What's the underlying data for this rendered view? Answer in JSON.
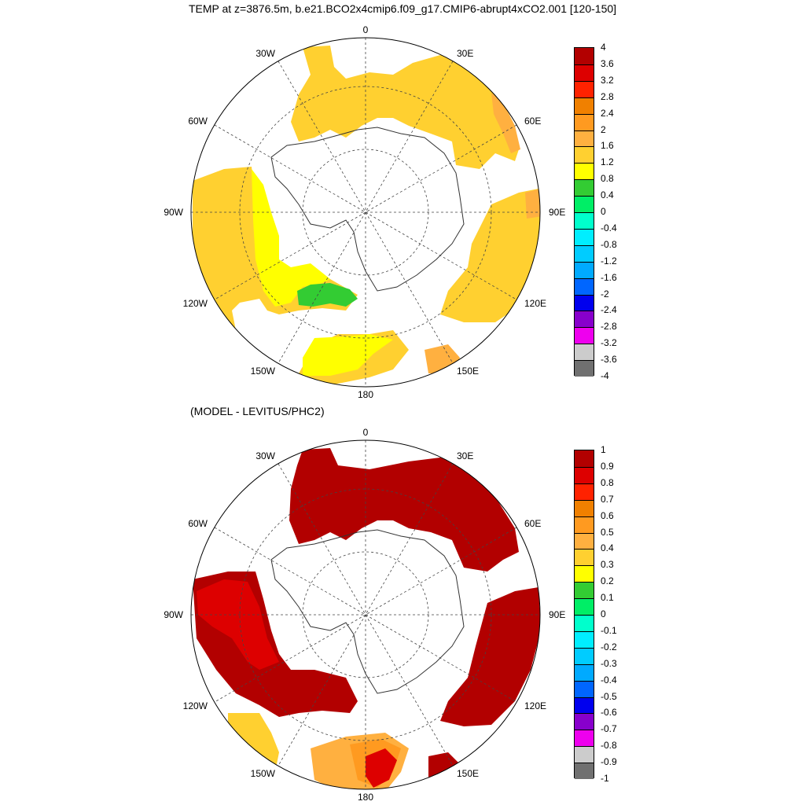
{
  "title": "TEMP at z=3876.5m, b.e21.BCO2x4cmip6.f09_g17.CMIP6-abrupt4xCO2.001 [120-150]",
  "subtitle": "(MODEL - LEVITUS/PHC2)",
  "longitude_labels": {
    "top": "0",
    "bottom": "180",
    "e30": "30E",
    "e60": "60E",
    "e90": "90E",
    "e120": "120E",
    "e150": "150E",
    "w30": "30W",
    "w60": "60W",
    "w90": "90W",
    "w120": "120W",
    "w150": "150W"
  },
  "colorbar_top": {
    "labels": [
      "4",
      "3.6",
      "3.2",
      "2.8",
      "2.4",
      "2",
      "1.6",
      "1.2",
      "0.8",
      "0.4",
      "0",
      "-0.4",
      "-0.8",
      "-1.2",
      "-1.6",
      "-2",
      "-2.4",
      "-2.8",
      "-3.2",
      "-3.6",
      "-4"
    ]
  },
  "colorbar_bottom": {
    "labels": [
      "1",
      "0.9",
      "0.8",
      "0.7",
      "0.6",
      "0.5",
      "0.4",
      "0.3",
      "0.2",
      "0.1",
      "0",
      "-0.1",
      "-0.2",
      "-0.3",
      "-0.4",
      "-0.5",
      "-0.6",
      "-0.7",
      "-0.8",
      "-0.9",
      "-1"
    ]
  },
  "colors": [
    "#b20000",
    "#dd0000",
    "#ff2200",
    "#f08000",
    "#ff9a20",
    "#ffb040",
    "#ffd030",
    "#ffff00",
    "#33cc33",
    "#00ee66",
    "#00ffcc",
    "#00eeff",
    "#00ccff",
    "#00aaff",
    "#0066ff",
    "#0000ee",
    "#8800cc",
    "#ee00ee",
    "#cccccc",
    "#707070"
  ],
  "colors_note_hidden": ""
}
